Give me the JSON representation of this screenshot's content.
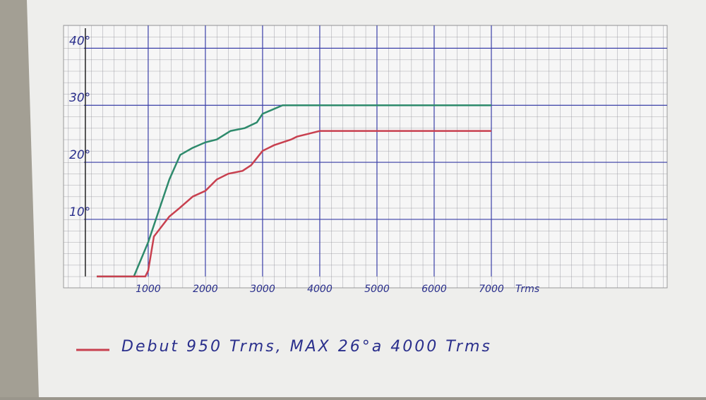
{
  "chart_data": {
    "type": "line",
    "x_label": "Trms",
    "annotation": "Debut 950 Trms, MAX 26°a 4000 Trms",
    "xlim": [
      -480,
      10074
    ],
    "ylim": [
      -2,
      44
    ],
    "xticks": [
      1000,
      2000,
      3000,
      4000,
      5000,
      6000,
      7000
    ],
    "yticks": [
      {
        "value": 10,
        "label": "10°"
      },
      {
        "value": 20,
        "label": "20°"
      },
      {
        "value": 30,
        "label": "30°"
      },
      {
        "value": 40,
        "label": "40°"
      }
    ],
    "grid": true,
    "series": [
      {
        "color": "#2e8a6c",
        "x": [
          100,
          750,
          1000,
          1370,
          1560,
          1770,
          2000,
          2200,
          2440,
          2690,
          2900,
          3000,
          3350,
          7000
        ],
        "values": [
          0,
          0,
          6,
          17,
          21.3,
          22.5,
          23.5,
          24,
          25.5,
          26,
          27,
          28.5,
          30,
          30
        ]
      },
      {
        "color": "#c8404f",
        "x": [
          100,
          950,
          1000,
          1100,
          1370,
          1550,
          1780,
          2000,
          2200,
          2400,
          2650,
          2800,
          3000,
          3200,
          3500,
          3600,
          3800,
          4000,
          4400,
          7000
        ],
        "values": [
          0,
          0,
          1,
          7,
          10.5,
          12,
          14,
          15,
          17,
          18,
          18.5,
          19.5,
          22,
          23,
          24,
          24.5,
          25,
          25.5,
          25.5,
          25.5
        ]
      }
    ]
  }
}
